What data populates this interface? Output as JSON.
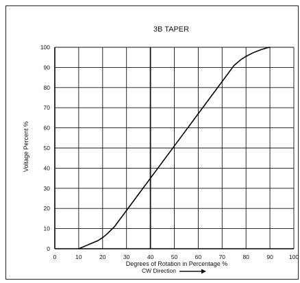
{
  "chart_data": {
    "type": "line",
    "title": "3B TAPER",
    "xlabel": "Degrees of Rotation in Percentage %",
    "xlabel_sub": "CW Direction",
    "ylabel": "Voltage Percent %",
    "xlim": [
      0,
      100
    ],
    "ylim": [
      0,
      100
    ],
    "xticks": [
      0,
      10,
      20,
      30,
      40,
      50,
      60,
      70,
      80,
      90,
      100
    ],
    "yticks": [
      0,
      10,
      20,
      30,
      40,
      50,
      60,
      70,
      80,
      90,
      100
    ],
    "grid": true,
    "legend": "none",
    "highlighted_vertical_line_x": 40,
    "series": [
      {
        "color": "#000000",
        "x": [
          10,
          12,
          15,
          18,
          20,
          22,
          25,
          30,
          35,
          40,
          45,
          50,
          55,
          60,
          65,
          70,
          75,
          78,
          80,
          83,
          86,
          89,
          90
        ],
        "y": [
          0,
          1,
          2.5,
          4,
          5.5,
          7.5,
          11,
          19,
          27,
          35,
          43,
          51,
          59,
          67,
          75,
          83,
          91,
          94,
          95.5,
          97.3,
          98.7,
          99.8,
          100
        ]
      }
    ]
  }
}
